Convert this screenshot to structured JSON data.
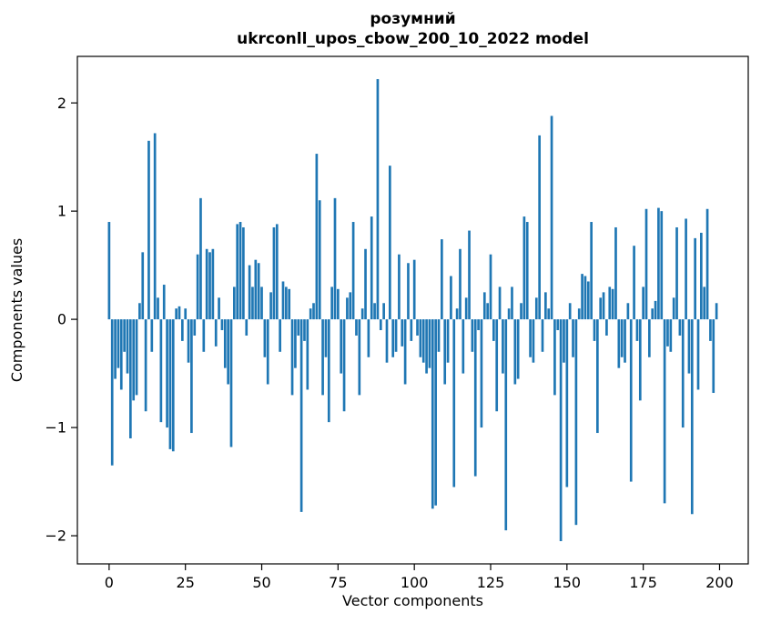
{
  "figure": {
    "title_line1": "розумний",
    "title_line2": "ukrconll_upos_cbow_200_10_2022 model",
    "xlabel": "Vector components",
    "ylabel": "Components values"
  },
  "chart_data": {
    "type": "bar",
    "title": "розумний\nukrconll_upos_cbow_200_10_2022 model",
    "xlabel": "Vector components",
    "ylabel": "Components values",
    "bar_color": "#1f77b4",
    "grid": false,
    "legend": null,
    "xlim": [
      -10.4,
      209.4
    ],
    "ylim": [
      -2.26,
      2.43
    ],
    "xticks": [
      0,
      25,
      50,
      75,
      100,
      125,
      150,
      175,
      200
    ],
    "yticks": [
      -2,
      -1,
      0,
      1,
      2
    ],
    "x_start": 0,
    "values": [
      0.9,
      -1.35,
      -0.55,
      -0.45,
      -0.65,
      -0.3,
      -0.5,
      -1.1,
      -0.75,
      -0.7,
      0.15,
      0.62,
      -0.85,
      1.65,
      -0.3,
      1.72,
      0.2,
      -0.95,
      0.32,
      -1.0,
      -1.2,
      -1.22,
      0.1,
      0.12,
      -0.2,
      0.1,
      -0.4,
      -1.05,
      -0.15,
      0.6,
      1.12,
      -0.3,
      0.65,
      0.62,
      0.65,
      -0.25,
      0.2,
      -0.1,
      -0.45,
      -0.6,
      -1.18,
      0.3,
      0.88,
      0.9,
      0.85,
      -0.15,
      0.5,
      0.3,
      0.55,
      0.52,
      0.3,
      -0.35,
      -0.6,
      0.25,
      0.85,
      0.88,
      -0.3,
      0.35,
      0.3,
      0.28,
      -0.7,
      -0.45,
      -0.15,
      -1.78,
      -0.2,
      -0.65,
      0.1,
      0.15,
      1.53,
      1.1,
      -0.7,
      -0.35,
      -0.95,
      0.3,
      1.12,
      0.28,
      -0.5,
      -0.85,
      0.2,
      0.25,
      0.9,
      -0.15,
      -0.7,
      0.1,
      0.65,
      -0.35,
      0.95,
      0.15,
      2.22,
      -0.1,
      0.15,
      -0.4,
      1.42,
      -0.35,
      -0.3,
      0.6,
      -0.25,
      -0.6,
      0.52,
      -0.2,
      0.55,
      -0.15,
      -0.35,
      -0.4,
      -0.5,
      -0.45,
      -1.75,
      -1.72,
      -0.3,
      0.74,
      -0.6,
      -0.4,
      0.4,
      -1.55,
      0.1,
      0.65,
      -0.5,
      0.2,
      0.82,
      -0.3,
      -1.45,
      -0.1,
      -1.0,
      0.25,
      0.15,
      0.6,
      -0.2,
      -0.85,
      0.3,
      -0.5,
      -1.95,
      0.1,
      0.3,
      -0.6,
      -0.55,
      0.15,
      0.95,
      0.9,
      -0.35,
      -0.4,
      0.2,
      1.7,
      -0.3,
      0.25,
      0.1,
      1.88,
      -0.7,
      -0.1,
      -2.05,
      -0.4,
      -1.55,
      0.15,
      -0.35,
      -1.9,
      0.1,
      0.42,
      0.4,
      0.35,
      0.9,
      -0.2,
      -1.05,
      0.2,
      0.25,
      -0.15,
      0.3,
      0.28,
      0.85,
      -0.45,
      -0.35,
      -0.4,
      0.15,
      -1.5,
      0.68,
      -0.2,
      -0.75,
      0.3,
      1.02,
      -0.35,
      0.1,
      0.17,
      1.03,
      1.0,
      -1.7,
      -0.25,
      -0.3,
      0.2,
      0.85,
      -0.15,
      -1.0,
      0.93,
      -0.5,
      -1.8,
      0.75,
      -0.65,
      0.8,
      0.3,
      1.02,
      -0.2,
      -0.68,
      0.15
    ]
  }
}
